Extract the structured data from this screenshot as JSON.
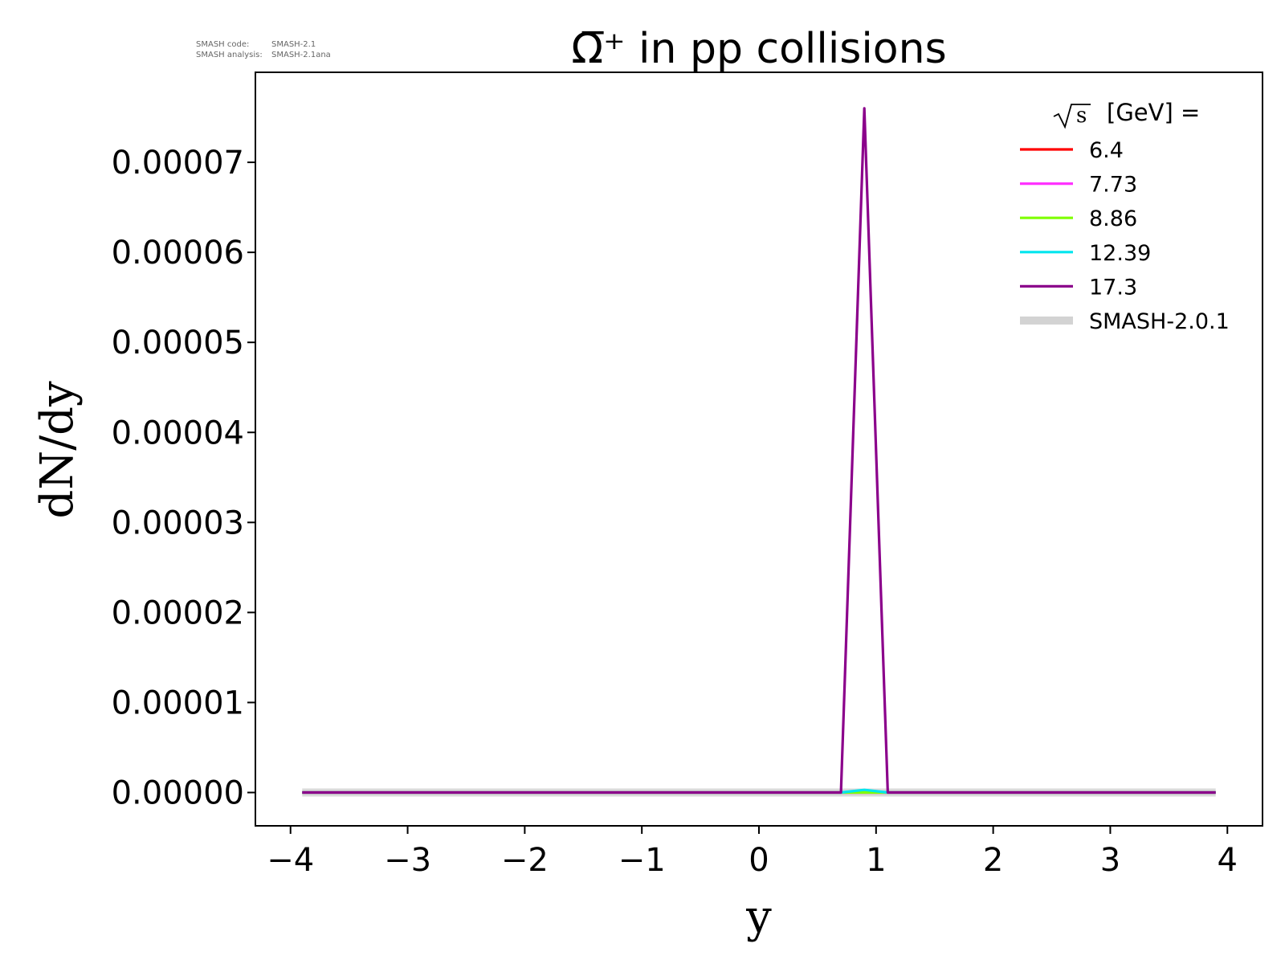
{
  "meta": {
    "code_label": "SMASH code:",
    "code_value": "SMASH-2.1",
    "analysis_label": "SMASH analysis:",
    "analysis_value": "SMASH-2.1ana"
  },
  "chart_data": {
    "type": "line",
    "title": "Ω̅⁺ in pp collisions",
    "xlabel": "y",
    "ylabel": "dN/dy",
    "xlim": [
      -4.3,
      4.3
    ],
    "ylim": [
      -3.7e-06,
      8e-05
    ],
    "xticks": [
      -4,
      -3,
      -2,
      -1,
      0,
      1,
      2,
      3,
      4
    ],
    "xtick_labels": [
      "−4",
      "−3",
      "−2",
      "−1",
      "0",
      "1",
      "2",
      "3",
      "4"
    ],
    "yticks": [
      0,
      1e-05,
      2e-05,
      3e-05,
      4e-05,
      5e-05,
      6e-05,
      7e-05
    ],
    "ytick_labels": [
      "0.00000",
      "0.00001",
      "0.00002",
      "0.00003",
      "0.00004",
      "0.00005",
      "0.00006",
      "0.00007"
    ],
    "grid": false,
    "legend": {
      "placement": "top-right",
      "title_prefix": "s",
      "title_suffix": "[GeV] ="
    },
    "series": [
      {
        "name": "SMASH-2.0.1",
        "color": "#d3d3d3",
        "style": "band",
        "x": [
          -3.9,
          3.9
        ],
        "y": [
          0,
          0
        ]
      },
      {
        "name": "6.4",
        "color": "#ff0000",
        "x": [
          -3.9,
          3.9
        ],
        "y": [
          0,
          0
        ]
      },
      {
        "name": "7.73",
        "color": "#ff33ff",
        "x": [
          -3.9,
          3.9
        ],
        "y": [
          0,
          0
        ]
      },
      {
        "name": "8.86",
        "color": "#7fff00",
        "x": [
          -3.9,
          3.9
        ],
        "y": [
          0,
          0
        ]
      },
      {
        "name": "12.39",
        "color": "#00e5ee",
        "x": [
          -3.9,
          0.7,
          0.9,
          1.1,
          3.9
        ],
        "y": [
          0,
          0,
          3e-07,
          0,
          0
        ]
      },
      {
        "name": "17.3",
        "color": "#8b008b",
        "x": [
          -3.9,
          0.7,
          0.9,
          1.1,
          3.9
        ],
        "y": [
          0,
          0,
          7.6e-05,
          0,
          0
        ]
      }
    ]
  }
}
